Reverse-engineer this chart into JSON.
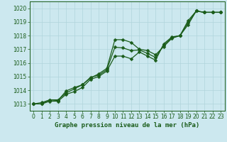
{
  "title": "Graphe pression niveau de la mer (hPa)",
  "xlim": [
    -0.5,
    23.5
  ],
  "ylim": [
    1012.5,
    1020.5
  ],
  "yticks": [
    1013,
    1014,
    1015,
    1016,
    1017,
    1018,
    1019,
    1020
  ],
  "xticks": [
    0,
    1,
    2,
    3,
    4,
    5,
    6,
    7,
    8,
    9,
    10,
    11,
    12,
    13,
    14,
    15,
    16,
    17,
    18,
    19,
    20,
    21,
    22,
    23
  ],
  "background_color": "#cce8ef",
  "grid_color": "#b0d4dc",
  "line_color": "#1a5c1a",
  "markersize": 2.5,
  "linewidth": 0.9,
  "series1_y": [
    1013.0,
    1013.0,
    1013.3,
    1013.3,
    1013.8,
    1014.1,
    1014.4,
    1014.9,
    1015.2,
    1015.6,
    1017.7,
    1017.7,
    1017.5,
    1017.0,
    1016.9,
    1016.6,
    1017.2,
    1017.8,
    1018.0,
    1019.1,
    1019.8,
    1019.7,
    1019.7,
    1019.7
  ],
  "series2_y": [
    1013.0,
    1013.0,
    1013.2,
    1013.2,
    1013.7,
    1013.9,
    1014.2,
    1014.8,
    1015.0,
    1015.4,
    1016.5,
    1016.5,
    1016.3,
    1016.8,
    1016.5,
    1016.2,
    1017.4,
    1017.9,
    1018.0,
    1018.8,
    1019.8,
    1019.7,
    1019.7,
    1019.7
  ],
  "series3_y": [
    1013.0,
    1013.1,
    1013.3,
    1013.25,
    1013.95,
    1014.2,
    1014.4,
    1014.95,
    1015.1,
    1015.5,
    1017.15,
    1017.1,
    1016.9,
    1016.95,
    1016.7,
    1016.4,
    1017.3,
    1017.85,
    1018.0,
    1018.95,
    1019.8,
    1019.7,
    1019.7,
    1019.7
  ],
  "tick_fontsize": 5.5,
  "title_fontsize": 6.5
}
